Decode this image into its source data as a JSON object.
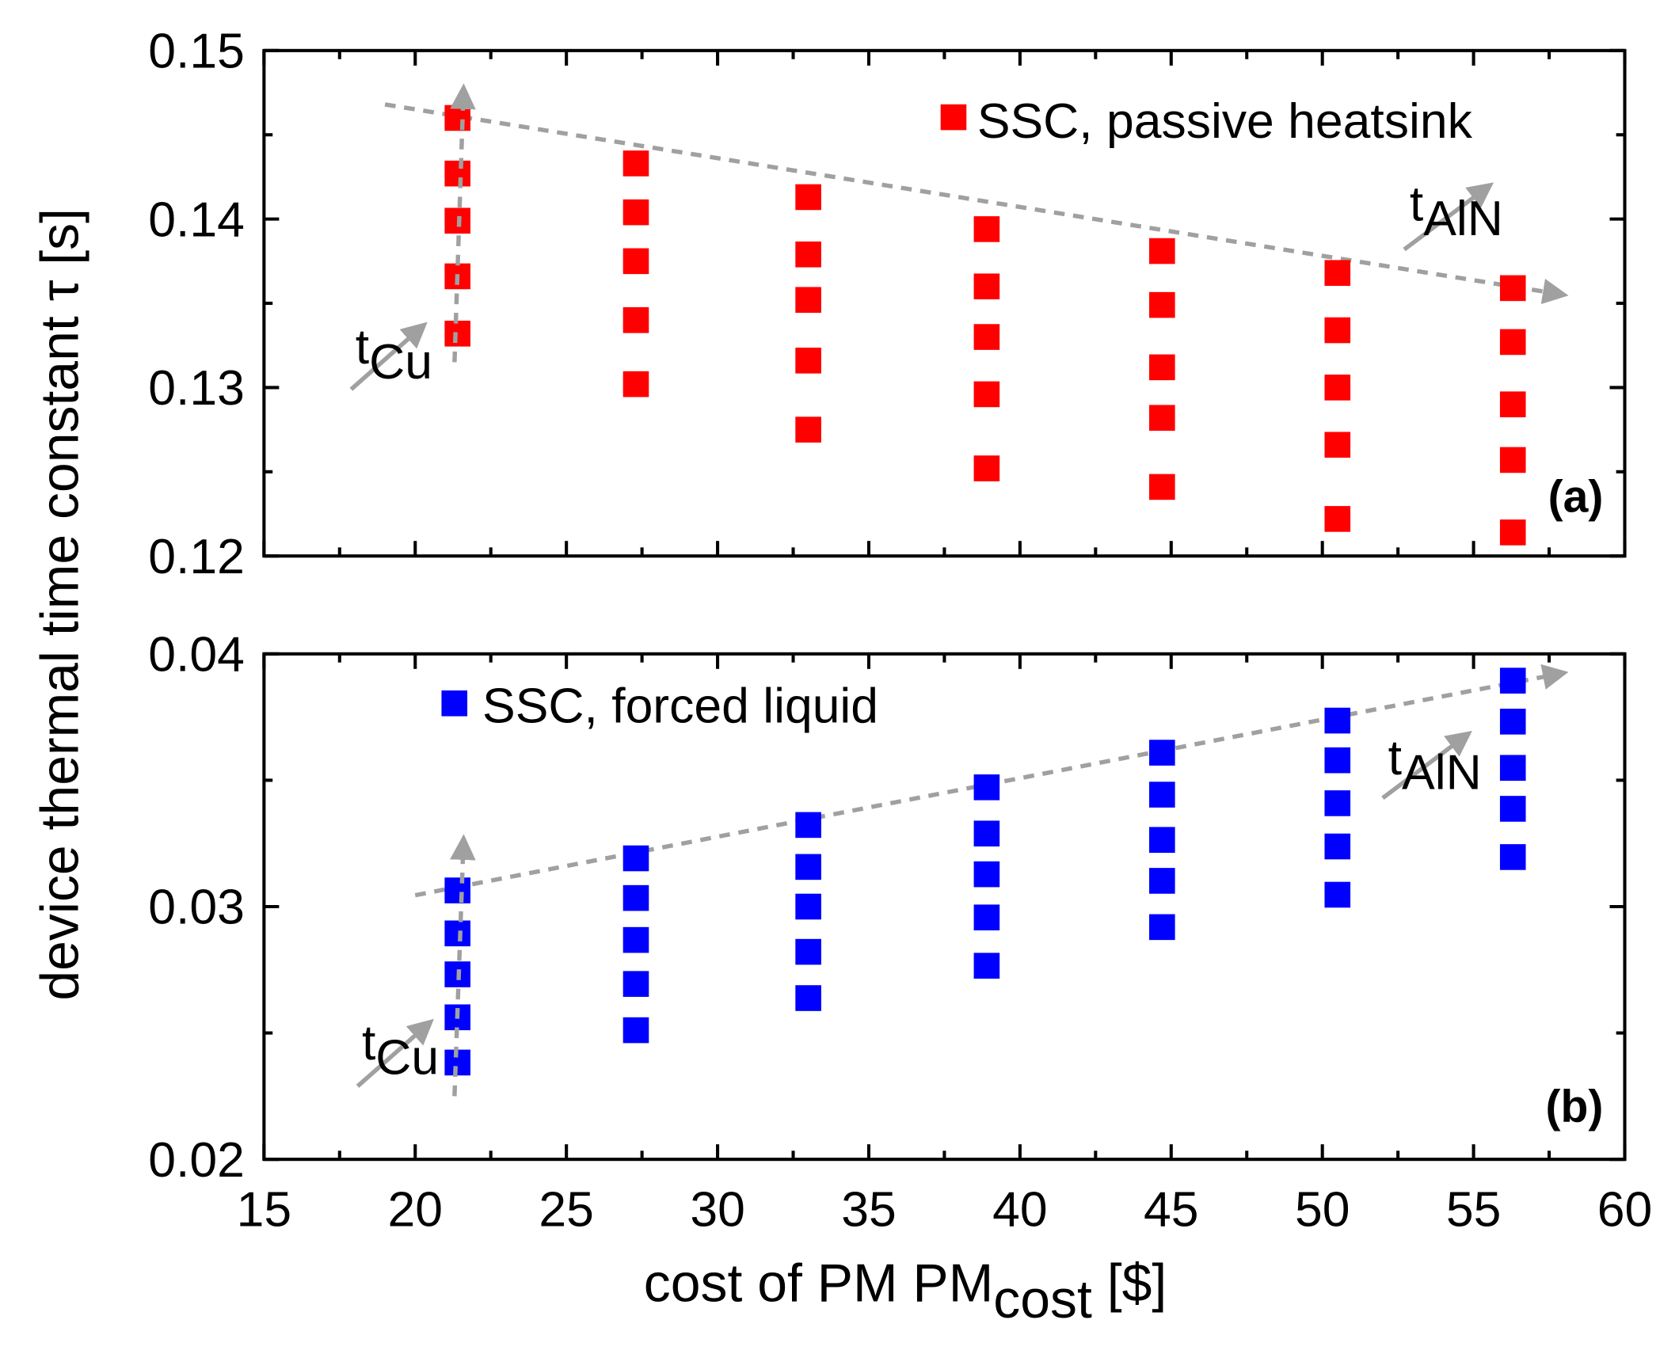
{
  "chart_data": [
    {
      "type": "scatter",
      "panel_label": "(a)",
      "legend": {
        "label": "SSC, passive heatsink",
        "placement": "top-right"
      },
      "color": "#ff0000",
      "ylim": [
        0.12,
        0.15
      ],
      "yticks": [
        "0.12",
        "0.13",
        "0.14",
        "0.15"
      ],
      "xlim": [
        15,
        60
      ],
      "x": [
        21.4,
        27.3,
        33.0,
        38.9,
        44.7,
        50.5,
        56.3
      ],
      "series": [
        [
          0.146,
          0.1427,
          0.1399,
          0.1366,
          0.1332
        ],
        [
          0.1433,
          0.1404,
          0.1375,
          0.134,
          0.1302
        ],
        [
          0.1413,
          0.1379,
          0.1352,
          0.1316,
          0.1275
        ],
        [
          0.1394,
          0.136,
          0.133,
          0.1296,
          0.1252
        ],
        [
          0.1381,
          0.1349,
          0.1312,
          0.1282,
          0.1241
        ],
        [
          0.1368,
          0.1334,
          0.13,
          0.1266,
          0.1222
        ],
        [
          0.1359,
          0.1327,
          0.129,
          0.1257,
          0.1214
        ]
      ],
      "annotations": {
        "cu": {
          "base": "t",
          "sub": "Cu"
        },
        "aln": {
          "base": "t",
          "sub": "AlN"
        }
      },
      "trend": {
        "from": [
          19,
          0.1468
        ],
        "to": [
          58,
          0.1355
        ]
      },
      "cu_arrow": {
        "from": [
          21.3,
          0.1315
        ],
        "to": [
          21.6,
          0.1478
        ]
      }
    },
    {
      "type": "scatter",
      "panel_label": "(b)",
      "legend": {
        "label": "SSC, forced liquid",
        "placement": "top-left"
      },
      "color": "#0000ff",
      "ylim": [
        0.02,
        0.04
      ],
      "yticks": [
        "0.02",
        "0.03",
        "0.04"
      ],
      "xlim": [
        15,
        60
      ],
      "x": [
        21.4,
        27.3,
        33.0,
        38.9,
        44.7,
        50.5,
        56.3
      ],
      "series": [
        [
          0.03064,
          0.02894,
          0.02732,
          0.02562,
          0.02383
        ],
        [
          0.03191,
          0.03034,
          0.02868,
          0.02694,
          0.02511
        ],
        [
          0.03323,
          0.03157,
          0.03,
          0.02821,
          0.02638
        ],
        [
          0.03472,
          0.03289,
          0.03128,
          0.02957,
          0.02766
        ],
        [
          0.03609,
          0.03443,
          0.03264,
          0.03102,
          0.02919
        ],
        [
          0.03736,
          0.03579,
          0.03409,
          0.03238,
          0.03047
        ],
        [
          0.03894,
          0.03732,
          0.03549,
          0.03387,
          0.03196
        ]
      ],
      "annotations": {
        "cu": {
          "base": "t",
          "sub": "Cu"
        },
        "aln": {
          "base": "t",
          "sub": "AlN"
        }
      },
      "trend": {
        "from": [
          20,
          0.03045
        ],
        "to": [
          58,
          0.03925
        ]
      },
      "cu_arrow": {
        "from": [
          21.3,
          0.0225
        ],
        "to": [
          21.6,
          0.0327
        ]
      }
    }
  ],
  "xaxis": {
    "ticks": [
      "15",
      "20",
      "25",
      "30",
      "35",
      "40",
      "45",
      "50",
      "55",
      "60"
    ],
    "label_main": "cost of PM PM",
    "label_sub": "cost",
    "label_end": " [$]"
  },
  "yaxis": {
    "label": "device thermal time constant τ [s]"
  },
  "colors": {
    "arrow": "#a0a0a0",
    "axis": "#000000"
  }
}
